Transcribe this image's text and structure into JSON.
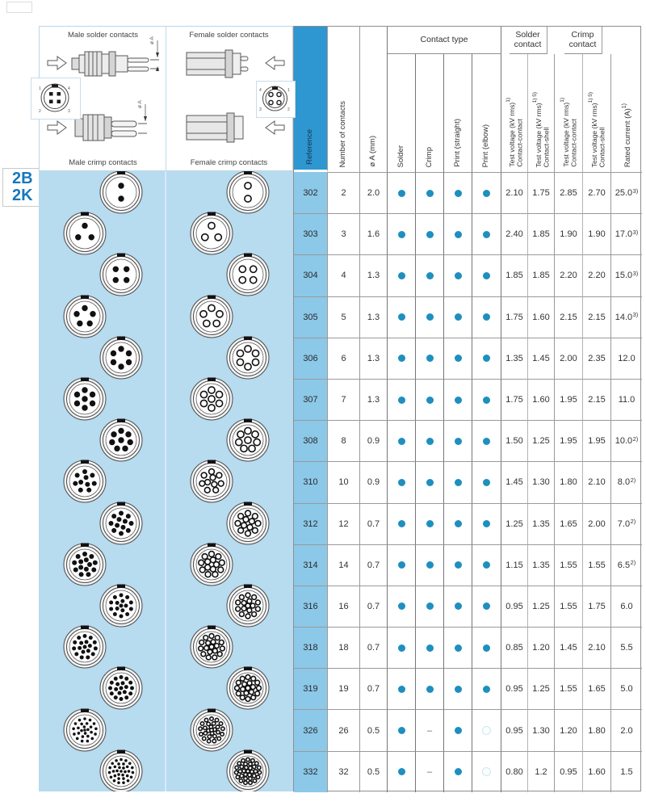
{
  "page": {
    "series_codes": [
      "2B",
      "2K"
    ]
  },
  "legend": {
    "quadrant_labels": [
      "Male solder contacts",
      "Female solder contacts",
      "Male crimp contacts",
      "Female crimp contacts"
    ],
    "dimension_label": "ø A"
  },
  "colors": {
    "panel_blue": "#b7dbef",
    "header_blue": "#2e96d0",
    "ref_cell_blue": "#8cc8e8",
    "dot_teal": "#1e8fbe",
    "code_blue": "#1778bd"
  },
  "table": {
    "headers": {
      "reference": "Reference",
      "number_of_contacts": "Number of contacts",
      "diameter": "ø A (mm)",
      "contact_type_group": "Contact type",
      "contact_types": [
        "Solder",
        "Crimp",
        "Print (straight)",
        "Print (elbow)"
      ],
      "solder_group": "Solder contact",
      "crimp_group": "Crimp contact",
      "voltage_cols": [
        {
          "main": "Test voltage (kV rms)",
          "sup": "1)",
          "sub": "Contact-contact"
        },
        {
          "main": "Test voltage (kV rms)",
          "sup": "1) 5)",
          "sub": "Contact-shell"
        },
        {
          "main": "Test voltage (kV rms)",
          "sup": "1)",
          "sub": "Contact-contact"
        },
        {
          "main": "Test voltage (kV rms)",
          "sup": "1) 5)",
          "sub": "Contact-shell"
        }
      ],
      "rated_current": {
        "main": "Rated current (A)",
        "sup": "1)"
      }
    },
    "rows": [
      {
        "ref": "302",
        "contacts": "2",
        "dia": "2.0",
        "solder": "dot",
        "crimp": "dot",
        "print_straight": "dot",
        "print_elbow": "dot",
        "tv": [
          "2.10",
          "1.75",
          "2.85",
          "2.70"
        ],
        "current": "25.0",
        "current_sup": "3)"
      },
      {
        "ref": "303",
        "contacts": "3",
        "dia": "1.6",
        "solder": "dot",
        "crimp": "dot",
        "print_straight": "dot",
        "print_elbow": "dot",
        "tv": [
          "2.40",
          "1.85",
          "1.90",
          "1.90"
        ],
        "current": "17.0",
        "current_sup": "3)"
      },
      {
        "ref": "304",
        "contacts": "4",
        "dia": "1.3",
        "solder": "dot",
        "crimp": "dot",
        "print_straight": "dot",
        "print_elbow": "dot",
        "tv": [
          "1.85",
          "1.85",
          "2.20",
          "2.20"
        ],
        "current": "15.0",
        "current_sup": "3)"
      },
      {
        "ref": "305",
        "contacts": "5",
        "dia": "1.3",
        "solder": "dot",
        "crimp": "dot",
        "print_straight": "dot",
        "print_elbow": "dot",
        "tv": [
          "1.75",
          "1.60",
          "2.15",
          "2.15"
        ],
        "current": "14.0",
        "current_sup": "3)"
      },
      {
        "ref": "306",
        "contacts": "6",
        "dia": "1.3",
        "solder": "dot",
        "crimp": "dot",
        "print_straight": "dot",
        "print_elbow": "dot",
        "tv": [
          "1.35",
          "1.45",
          "2.00",
          "2.35"
        ],
        "current": "12.0",
        "current_sup": ""
      },
      {
        "ref": "307",
        "contacts": "7",
        "dia": "1.3",
        "solder": "dot",
        "crimp": "dot",
        "print_straight": "dot",
        "print_elbow": "dot",
        "tv": [
          "1.75",
          "1.60",
          "1.95",
          "2.15"
        ],
        "current": "11.0",
        "current_sup": ""
      },
      {
        "ref": "308",
        "contacts": "8",
        "dia": "0.9",
        "solder": "dot",
        "crimp": "dot",
        "print_straight": "dot",
        "print_elbow": "dot",
        "tv": [
          "1.50",
          "1.25",
          "1.95",
          "1.95"
        ],
        "current": "10.0",
        "current_sup": "2)"
      },
      {
        "ref": "310",
        "contacts": "10",
        "dia": "0.9",
        "solder": "dot",
        "crimp": "dot",
        "print_straight": "dot",
        "print_elbow": "dot",
        "tv": [
          "1.45",
          "1.30",
          "1.80",
          "2.10"
        ],
        "current": "8.0",
        "current_sup": "2)"
      },
      {
        "ref": "312",
        "contacts": "12",
        "dia": "0.7",
        "solder": "dot",
        "crimp": "dot",
        "print_straight": "dot",
        "print_elbow": "dot",
        "tv": [
          "1.25",
          "1.35",
          "1.65",
          "2.00"
        ],
        "current": "7.0",
        "current_sup": "2)"
      },
      {
        "ref": "314",
        "contacts": "14",
        "dia": "0.7",
        "solder": "dot",
        "crimp": "dot",
        "print_straight": "dot",
        "print_elbow": "dot",
        "tv": [
          "1.15",
          "1.35",
          "1.55",
          "1.55"
        ],
        "current": "6.5",
        "current_sup": "2)"
      },
      {
        "ref": "316",
        "contacts": "16",
        "dia": "0.7",
        "solder": "dot",
        "crimp": "dot",
        "print_straight": "dot",
        "print_elbow": "dot",
        "tv": [
          "0.95",
          "1.25",
          "1.55",
          "1.75"
        ],
        "current": "6.0",
        "current_sup": ""
      },
      {
        "ref": "318",
        "contacts": "18",
        "dia": "0.7",
        "solder": "dot",
        "crimp": "dot",
        "print_straight": "dot",
        "print_elbow": "dot",
        "tv": [
          "0.85",
          "1.20",
          "1.45",
          "2.10"
        ],
        "current": "5.5",
        "current_sup": ""
      },
      {
        "ref": "319",
        "contacts": "19",
        "dia": "0.7",
        "solder": "dot",
        "crimp": "dot",
        "print_straight": "dot",
        "print_elbow": "dot",
        "tv": [
          "0.95",
          "1.25",
          "1.55",
          "1.65"
        ],
        "current": "5.0",
        "current_sup": ""
      },
      {
        "ref": "326",
        "contacts": "26",
        "dia": "0.5",
        "solder": "dot",
        "crimp": "dash",
        "print_straight": "dot",
        "print_elbow": "circle",
        "tv": [
          "0.95",
          "1.30",
          "1.20",
          "1.80"
        ],
        "current": "2.0",
        "current_sup": ""
      },
      {
        "ref": "332",
        "contacts": "32",
        "dia": "0.5",
        "solder": "dot",
        "crimp": "dash",
        "print_straight": "dot",
        "print_elbow": "circle",
        "tv": [
          "0.80",
          "1.2",
          "0.95",
          "1.60"
        ],
        "current": "1.5",
        "current_sup": ""
      }
    ]
  }
}
